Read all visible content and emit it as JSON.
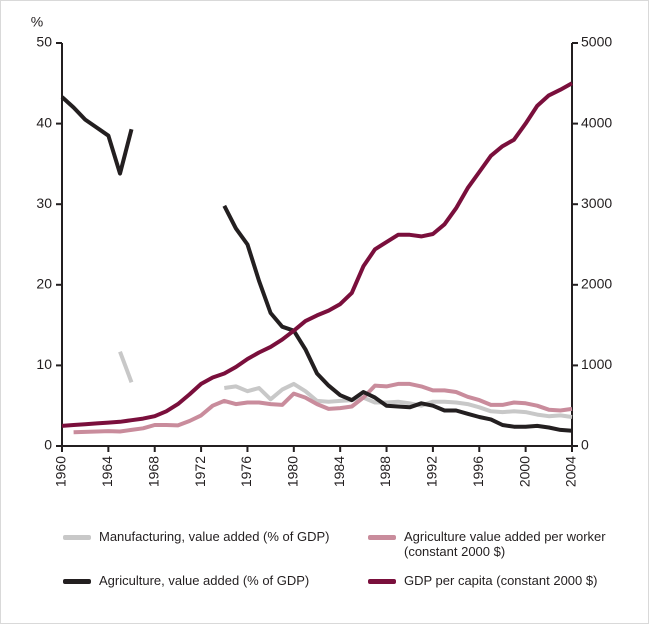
{
  "chart_data": {
    "type": "line",
    "y_label": "%",
    "x": [
      1960,
      1961,
      1962,
      1963,
      1964,
      1965,
      1966,
      1967,
      1968,
      1969,
      1970,
      1971,
      1972,
      1973,
      1974,
      1975,
      1976,
      1977,
      1978,
      1979,
      1980,
      1981,
      1982,
      1983,
      1984,
      1985,
      1986,
      1987,
      1988,
      1989,
      1990,
      1991,
      1992,
      1993,
      1994,
      1995,
      1996,
      1997,
      1998,
      1999,
      2000,
      2001,
      2002,
      2003,
      2004
    ],
    "xlim": [
      1960,
      2004
    ],
    "xticks": [
      1960,
      1964,
      1968,
      1972,
      1976,
      1980,
      1984,
      1988,
      1992,
      1996,
      2000,
      2004
    ],
    "ylim": [
      0,
      50
    ],
    "yticks": [
      0,
      10,
      20,
      30,
      40,
      50
    ],
    "y2lim": [
      0,
      5000
    ],
    "y2ticks": [
      0,
      1000,
      2000,
      3000,
      4000,
      5000
    ],
    "series": [
      {
        "name": "Manufacturing, value added (% of GDP)",
        "color": "#c8c8c8",
        "values": [
          null,
          null,
          null,
          null,
          null,
          11.7,
          7.9,
          null,
          null,
          null,
          null,
          null,
          null,
          null,
          7.2,
          7.4,
          6.8,
          7.2,
          5.8,
          7.0,
          7.7,
          6.8,
          5.6,
          5.5,
          5.6,
          5.7,
          6.0,
          5.4,
          5.4,
          5.5,
          5.3,
          5.0,
          5.5,
          5.5,
          5.4,
          5.2,
          4.8,
          4.3,
          4.2,
          4.3,
          4.2,
          3.9,
          3.7,
          3.8,
          3.6
        ]
      },
      {
        "name": "Agriculture value added per worker (constant 2000 $)",
        "color": "#c98c9c",
        "axis": "y2",
        "values": [
          null,
          170,
          175,
          180,
          185,
          180,
          200,
          220,
          260,
          260,
          255,
          310,
          380,
          500,
          560,
          520,
          540,
          540,
          520,
          510,
          650,
          600,
          520,
          460,
          470,
          490,
          600,
          750,
          740,
          770,
          770,
          740,
          690,
          690,
          670,
          610,
          570,
          510,
          510,
          540,
          530,
          500,
          450,
          440,
          460
        ]
      },
      {
        "name": "Agriculture, value added (% of GDP)",
        "color": "#231f20",
        "values": [
          43.3,
          42.0,
          40.5,
          39.5,
          38.5,
          33.8,
          39.3,
          null,
          null,
          null,
          null,
          null,
          null,
          null,
          29.8,
          27.0,
          25.0,
          20.5,
          16.5,
          14.8,
          14.3,
          12.0,
          9.0,
          7.5,
          6.3,
          5.7,
          6.7,
          6.0,
          5.0,
          4.9,
          4.8,
          5.3,
          5.0,
          4.4,
          4.4,
          4.0,
          3.6,
          3.3,
          2.6,
          2.4,
          2.4,
          2.5,
          2.3,
          2.0,
          1.9
        ]
      },
      {
        "name": "GDP per capita (constant 2000 $)",
        "color": "#7a0f3c",
        "axis": "y2",
        "values": [
          250,
          260,
          270,
          280,
          290,
          300,
          320,
          340,
          370,
          430,
          520,
          640,
          770,
          850,
          900,
          980,
          1080,
          1160,
          1230,
          1320,
          1430,
          1550,
          1620,
          1680,
          1760,
          1900,
          2230,
          2440,
          2530,
          2620,
          2620,
          2600,
          2630,
          2750,
          2950,
          3200,
          3400,
          3600,
          3720,
          3800,
          4000,
          4220,
          4350,
          4420,
          4500
        ]
      }
    ]
  }
}
